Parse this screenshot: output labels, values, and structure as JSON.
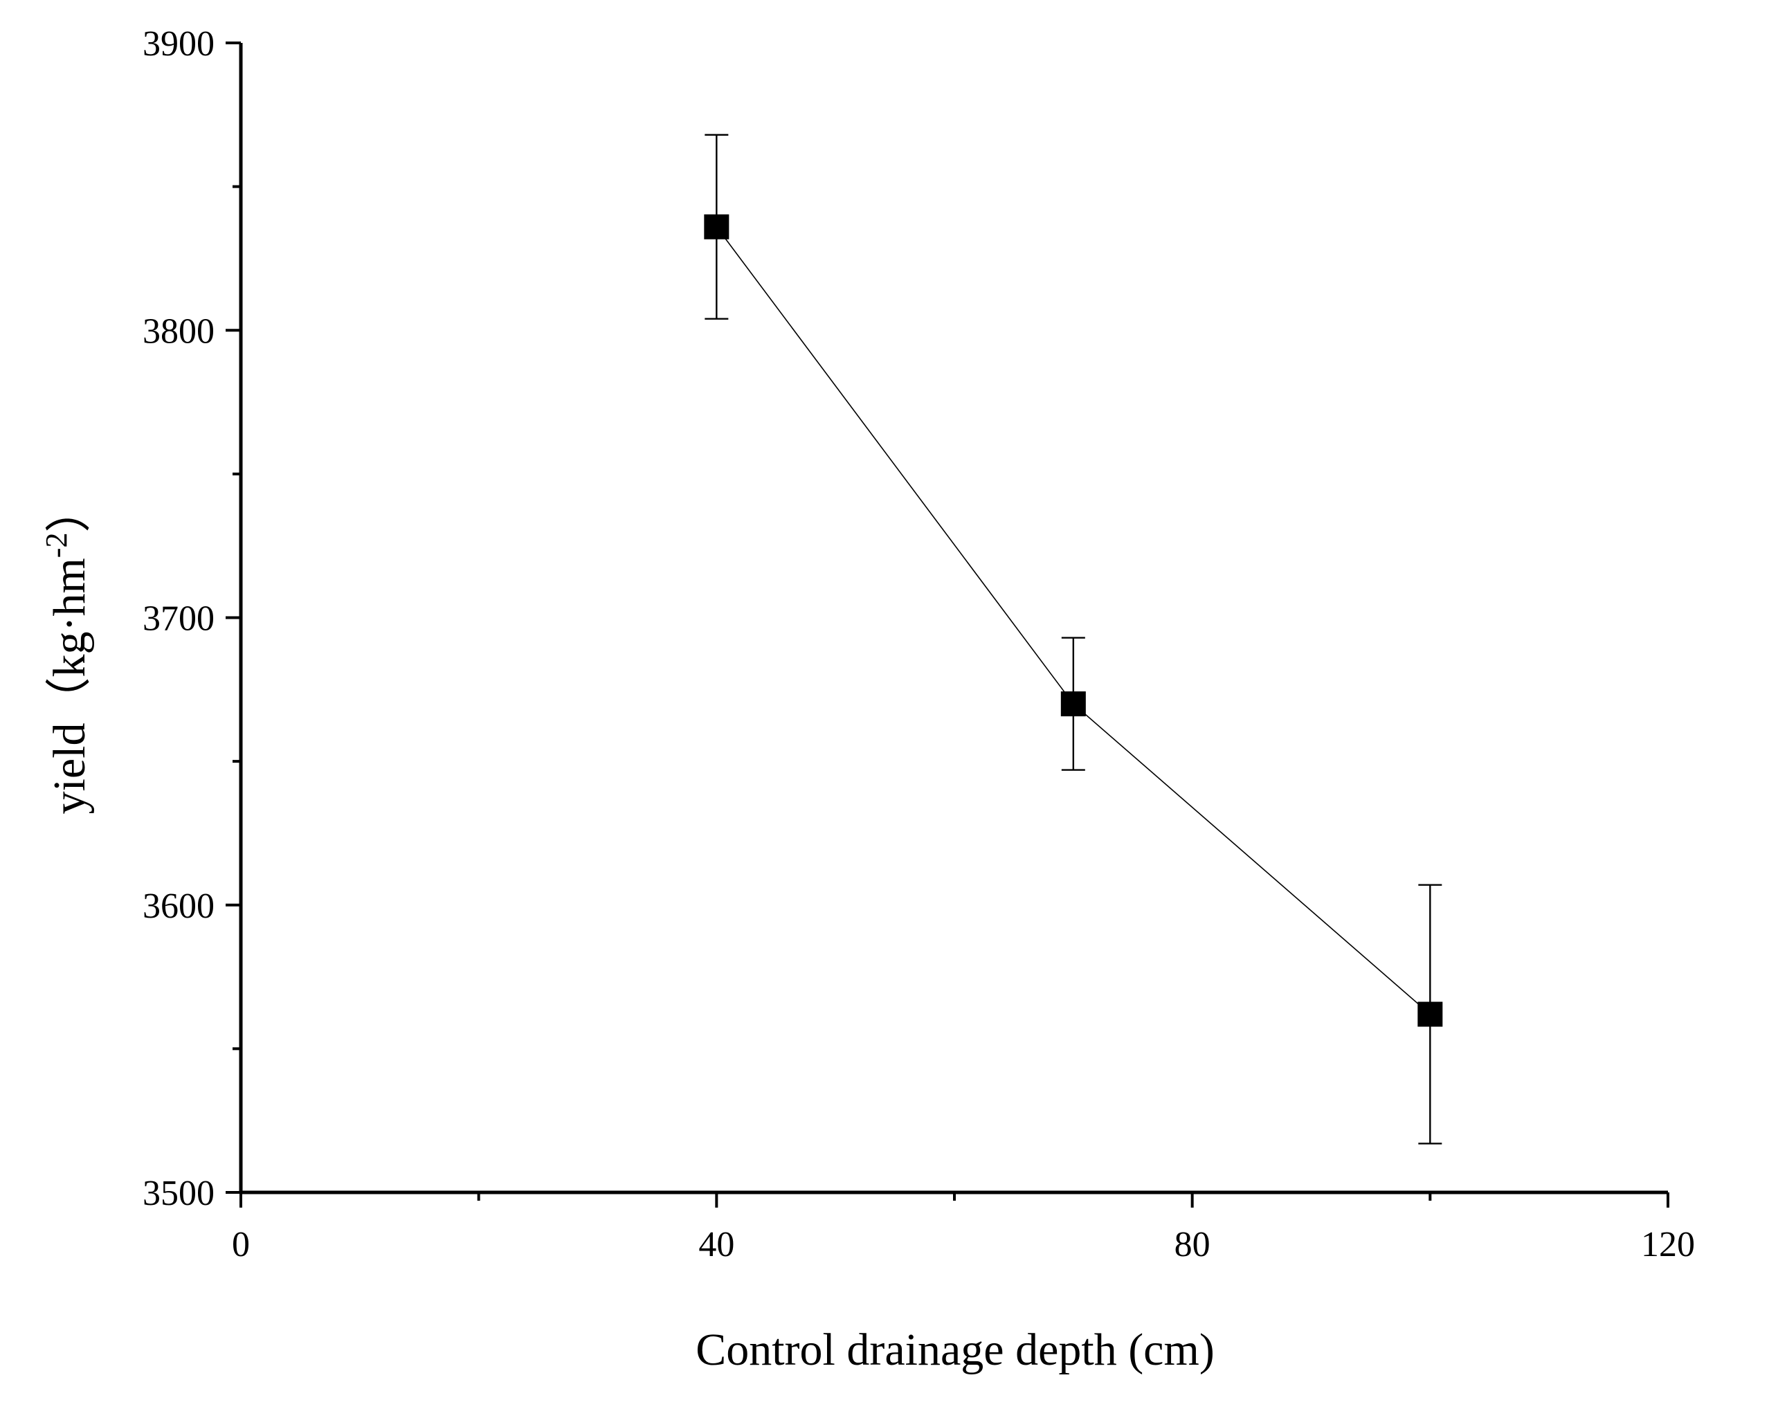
{
  "chart_data": {
    "type": "line",
    "title": "",
    "xlabel": "Control drainage depth (cm)",
    "ylabel": "yield（kg·hm",
    "ylabel_superscript": "-2",
    "ylabel_close": "）",
    "xlim": [
      0,
      120
    ],
    "ylim": [
      3500,
      3900
    ],
    "x_major_ticks": [
      0,
      40,
      80,
      120
    ],
    "x_minor_ticks": [
      20,
      60,
      100
    ],
    "y_major_ticks": [
      3500,
      3600,
      3700,
      3800,
      3900
    ],
    "y_minor_ticks": [
      3550,
      3650,
      3750,
      3850
    ],
    "x_tick_labels": [
      "0",
      "40",
      "80",
      "120"
    ],
    "y_tick_labels": [
      "3500",
      "3600",
      "3700",
      "3800",
      "3900"
    ],
    "grid": false,
    "legend": "none",
    "series": [
      {
        "name": "yield",
        "x": [
          40,
          70,
          100
        ],
        "y": [
          3836,
          3670,
          3562
        ],
        "error_upper": [
          3868,
          3693,
          3607
        ],
        "error_lower": [
          3804,
          3647,
          3517
        ]
      }
    ]
  },
  "colors": {
    "foreground": "#000000",
    "background": "#ffffff"
  }
}
